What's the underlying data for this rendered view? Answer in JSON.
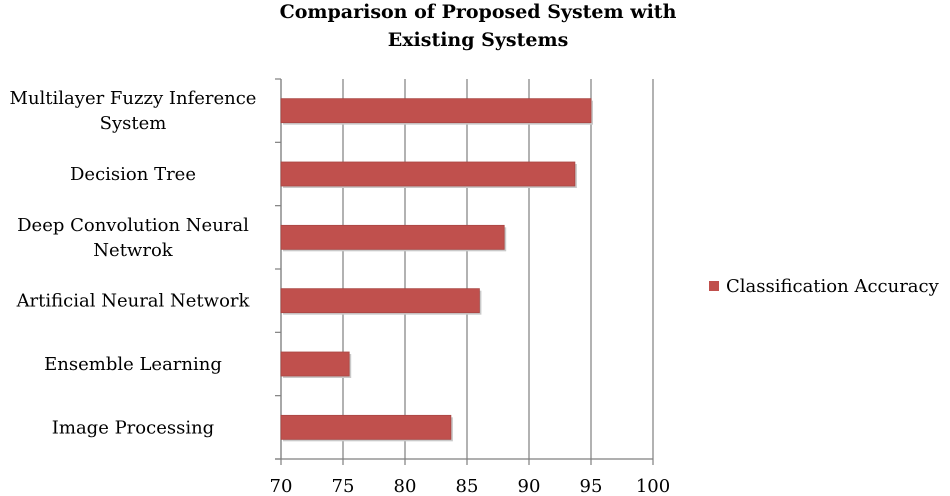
{
  "chart_data": {
    "type": "bar",
    "orientation": "horizontal",
    "title": "Comparison of Proposed System with Existing Systems",
    "title_lines": [
      "Comparison of Proposed System with",
      "Existing Systems"
    ],
    "categories": [
      "Multilayer Fuzzy Inference System",
      "Decision Tree",
      "Deep Convolution Neural Netwrok",
      "Artificial Neural Network",
      "Ensemble Learning",
      "Image Processing"
    ],
    "category_lines": [
      [
        "Multilayer Fuzzy Inference",
        "System"
      ],
      [
        "Decision Tree"
      ],
      [
        "Deep Convolution Neural",
        "Netwrok"
      ],
      [
        "Artificial Neural Network"
      ],
      [
        "Ensemble Learning"
      ],
      [
        "Image Processing"
      ]
    ],
    "series": [
      {
        "name": "Classification Accuracy",
        "values": [
          95,
          93.7,
          88,
          86,
          75.5,
          83.7
        ],
        "color": "#c0504d"
      }
    ],
    "xlim": [
      70,
      100
    ],
    "xticks": [
      "70",
      "75",
      "80",
      "85",
      "90",
      "95",
      "100"
    ],
    "xlabel": "",
    "ylabel": "",
    "grid": true,
    "legend": "right"
  }
}
